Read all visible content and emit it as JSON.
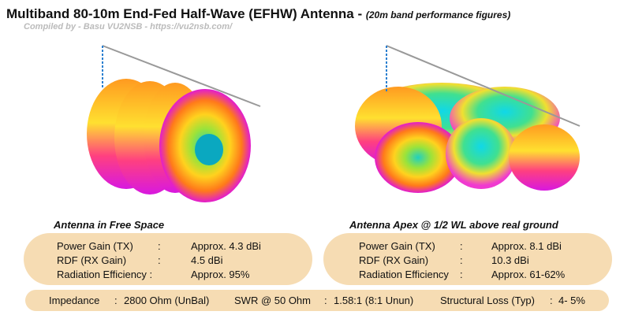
{
  "header": {
    "title": "Multiband 80-10m End-Fed Half-Wave (EFHW) Antenna -",
    "subtitle": "(20m band performance figures)",
    "credit": "Compiled by - Basu VU2NSB - https://vu2nsb.com/"
  },
  "panels": [
    {
      "caption": "Antenna in Free Space",
      "rows": [
        [
          "Power Gain (TX)",
          ":",
          "Approx. 4.3 dBi"
        ],
        [
          "RDF (RX Gain)",
          ":",
          "4.5 dBi"
        ],
        [
          "Radiation Efficiency :",
          "Approx. 95%"
        ]
      ]
    },
    {
      "caption": "Antenna Apex @ 1/2 WL above real ground",
      "rows": [
        [
          "Power Gain (TX)",
          ":",
          "Approx. 8.1 dBi"
        ],
        [
          "RDF (RX Gain)",
          ":",
          "10.3 dBi"
        ],
        [
          "Radiation Efficiency",
          ":",
          "Approx. 61-62%"
        ]
      ]
    }
  ],
  "footer": [
    [
      "Impedance",
      ":",
      "2800 Ohm (UnBal)"
    ],
    [
      "SWR @ 50 Ohm",
      ":",
      "1.58:1 (8:1 Unun)"
    ],
    [
      "Structural Loss (Typ)",
      ":",
      "4- 5%"
    ]
  ]
}
